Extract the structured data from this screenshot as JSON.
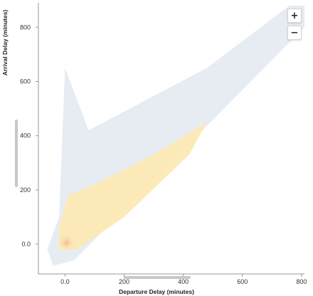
{
  "chart_data": {
    "type": "heatmap",
    "title": "",
    "xlabel": "Departure Delay (minutes)",
    "ylabel": "Arrival Delay (minutes)",
    "xlim": [
      -90,
      810
    ],
    "ylim": [
      -110,
      890
    ],
    "x_ticks": [
      {
        "value": 0,
        "label": "0.0"
      },
      {
        "value": 200,
        "label": "200"
      },
      {
        "value": 400,
        "label": "400"
      },
      {
        "value": 600,
        "label": "600"
      },
      {
        "value": 800,
        "label": "800"
      }
    ],
    "y_ticks": [
      {
        "value": 0,
        "label": "0.0"
      },
      {
        "value": 200,
        "label": "200"
      },
      {
        "value": 400,
        "label": "400"
      },
      {
        "value": 600,
        "label": "600"
      },
      {
        "value": 800,
        "label": "800"
      }
    ],
    "grid": false,
    "colors": {
      "low_density": "#e3e9f0",
      "high_density": "#fde9b4",
      "peak": "#f5c8a4"
    },
    "density_regions": [
      {
        "name": "sparse",
        "color": "#e3e9f0",
        "polygon": [
          [
            -40,
            -80
          ],
          [
            30,
            -60
          ],
          [
            810,
            800
          ],
          [
            810,
            880
          ],
          [
            760,
            880
          ],
          [
            480,
            650
          ],
          [
            80,
            420
          ],
          [
            0,
            650
          ],
          [
            -20,
            100
          ],
          [
            -60,
            -20
          ]
        ]
      },
      {
        "name": "dense",
        "color": "#fde9b4",
        "polygon": [
          [
            -20,
            -20
          ],
          [
            40,
            -20
          ],
          [
            200,
            100
          ],
          [
            420,
            330
          ],
          [
            480,
            450
          ],
          [
            300,
            330
          ],
          [
            100,
            220
          ],
          [
            10,
            180
          ],
          [
            -20,
            60
          ]
        ]
      }
    ],
    "peak_point": {
      "x": 5,
      "y": 5
    }
  },
  "controls": {
    "zoom_in": "+",
    "zoom_out": "−"
  }
}
